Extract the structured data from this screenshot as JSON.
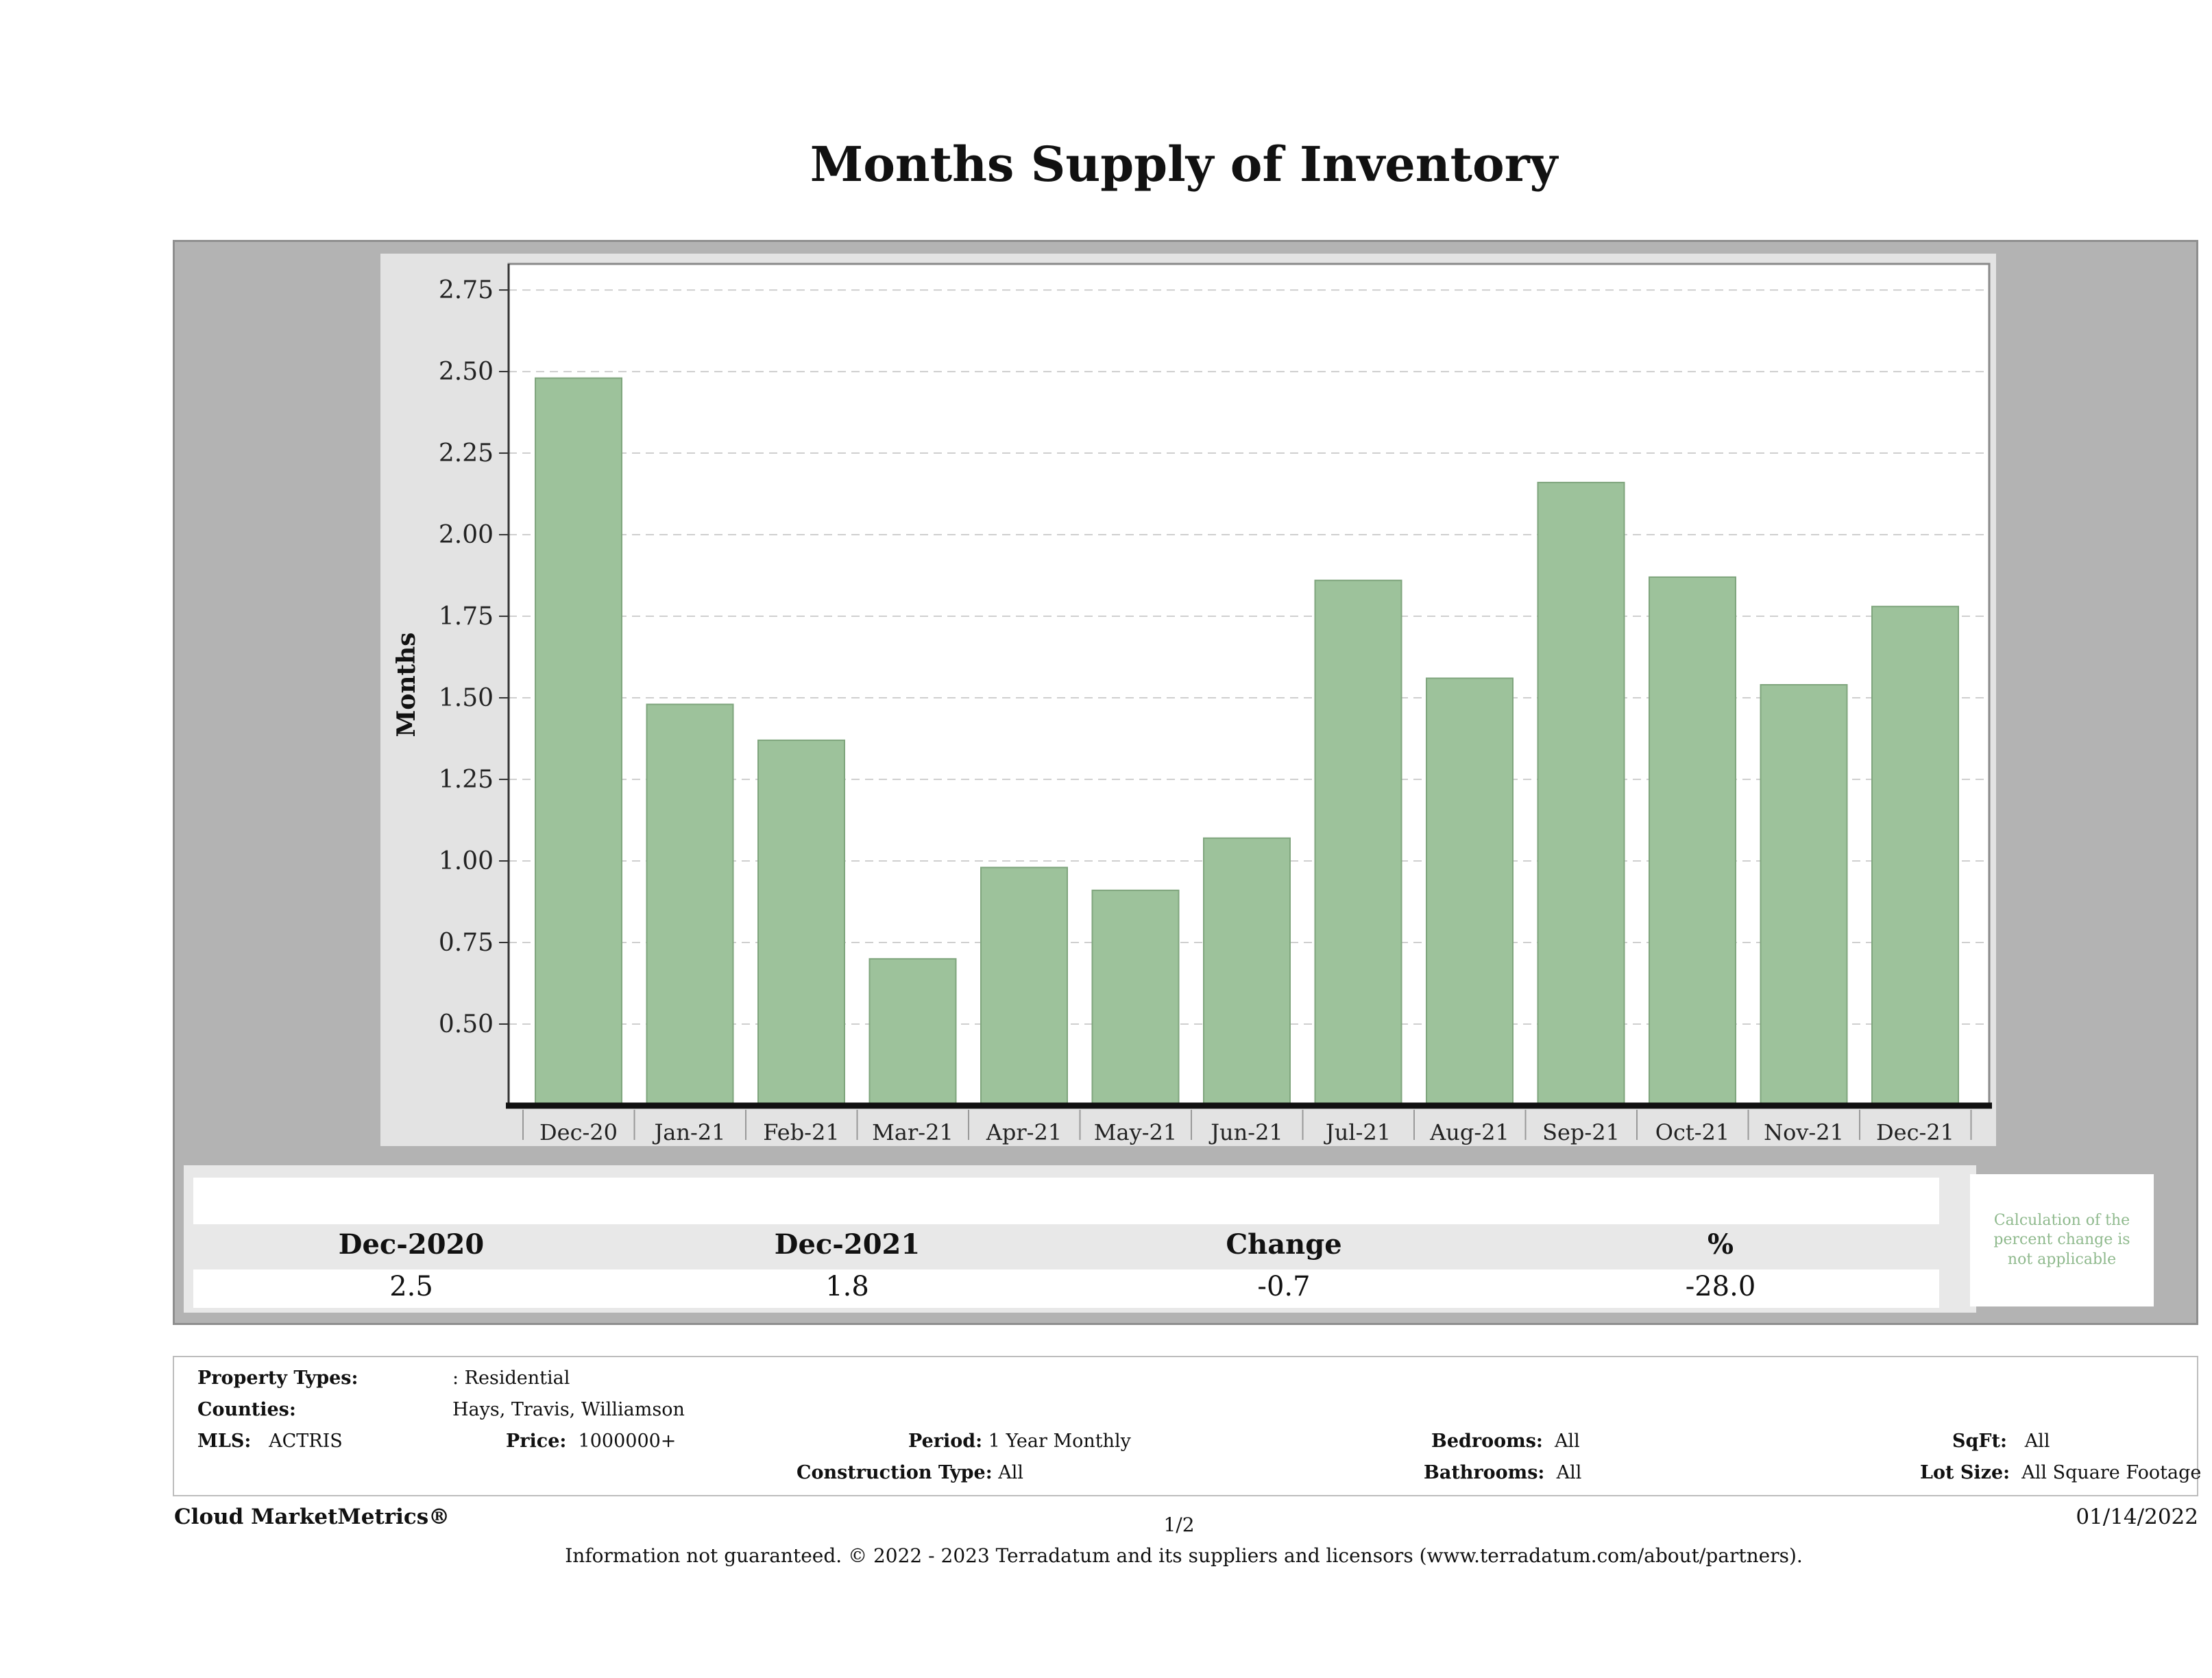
{
  "title": "Months Supply of Inventory",
  "chart_data": {
    "type": "bar",
    "title": "Months Supply of Inventory",
    "xlabel": "",
    "ylabel": "Months",
    "categories": [
      "Dec-20",
      "Jan-21",
      "Feb-21",
      "Mar-21",
      "Apr-21",
      "May-21",
      "Jun-21",
      "Jul-21",
      "Aug-21",
      "Sep-21",
      "Oct-21",
      "Nov-21",
      "Dec-21"
    ],
    "values": [
      2.48,
      1.48,
      1.37,
      0.7,
      0.98,
      0.91,
      1.07,
      1.86,
      1.56,
      2.16,
      1.87,
      1.54,
      1.78
    ],
    "ylim": [
      0.25,
      2.83
    ],
    "yticks": [
      "0.50",
      "0.75",
      "1.00",
      "1.25",
      "1.50",
      "1.75",
      "2.00",
      "2.25",
      "2.50",
      "2.75"
    ],
    "bar_color": "#9dc29b",
    "grid": true
  },
  "summary": {
    "headers": [
      "Dec-2020",
      "Dec-2021",
      "Change",
      "%"
    ],
    "values": [
      "2.5",
      "1.8",
      "-0.7",
      "-28.0"
    ],
    "note": "Calculation of the percent change is not applicable"
  },
  "criteria": {
    "property_types_label": "Property Types:",
    "property_types_value": ": Residential",
    "counties_label": "Counties:",
    "counties_value": "Hays, Travis, Williamson",
    "mls_label": "MLS:",
    "mls_value": "ACTRIS",
    "price_label": "Price:",
    "price_value": "1000000+",
    "period_label": "Period:",
    "period_value": "1 Year Monthly",
    "construction_label": "Construction Type:",
    "construction_value": "All",
    "bedrooms_label": "Bedrooms:",
    "bedrooms_value": "All",
    "bathrooms_label": "Bathrooms:",
    "bathrooms_value": "All",
    "sqft_label": "SqFt:",
    "sqft_value": "All",
    "lotsize_label": "Lot Size:",
    "lotsize_value": "All Square Footage"
  },
  "footer": {
    "brand": "Cloud MarketMetrics®",
    "page": "1/2",
    "date": "01/14/2022",
    "disclaimer": "Information not guaranteed. © 2022 - 2023 Terradatum and its suppliers and licensors (www.terradatum.com/about/partners)."
  }
}
